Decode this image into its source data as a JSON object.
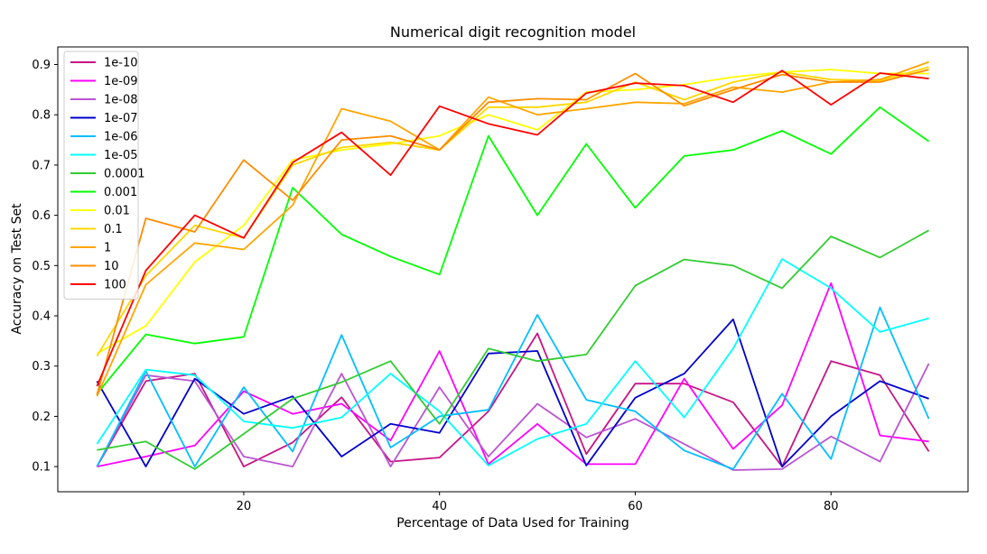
{
  "chart_data": {
    "type": "line",
    "title": "Numerical digit recognition model",
    "xlabel": "Percentage of Data Used for Training",
    "ylabel": "Accuracy on Test Set",
    "xlim": [
      1,
      94
    ],
    "ylim": [
      0.05,
      0.935
    ],
    "xticks": [
      20,
      40,
      60,
      80
    ],
    "yticks": [
      0.1,
      0.2,
      0.3,
      0.4,
      0.5,
      0.6,
      0.7,
      0.8,
      0.9
    ],
    "xtick_labels": [
      "20",
      "40",
      "60",
      "80"
    ],
    "ytick_labels": [
      "0.1",
      "0.2",
      "0.3",
      "0.4",
      "0.5",
      "0.6",
      "0.7",
      "0.8",
      "0.9"
    ],
    "grid": false,
    "legend_position": "top-left",
    "x": [
      5,
      10,
      15,
      20,
      25,
      30,
      35,
      40,
      45,
      50,
      55,
      60,
      65,
      70,
      75,
      80,
      85,
      90
    ],
    "series": [
      {
        "name": "1e-10",
        "color": "#c71585",
        "values": [
          0.1,
          0.27,
          0.285,
          0.1,
          0.148,
          0.238,
          0.11,
          0.118,
          0.21,
          0.365,
          0.125,
          0.265,
          0.265,
          0.228,
          0.1,
          0.31,
          0.282,
          0.13
        ]
      },
      {
        "name": "1e-09",
        "color": "#ff00ff",
        "values": [
          0.1,
          0.12,
          0.142,
          0.25,
          0.205,
          0.225,
          0.152,
          0.33,
          0.105,
          0.185,
          0.105,
          0.105,
          0.275,
          0.135,
          0.222,
          0.465,
          0.162,
          0.15
        ]
      },
      {
        "name": "1e-08",
        "color": "#ba55d3",
        "values": [
          0.1,
          0.282,
          0.27,
          0.12,
          0.1,
          0.285,
          0.1,
          0.258,
          0.12,
          0.225,
          0.158,
          0.195,
          0.145,
          0.093,
          0.095,
          0.16,
          0.11,
          0.305
        ]
      },
      {
        "name": "1e-07",
        "color": "#0000cd",
        "values": [
          0.27,
          0.1,
          0.275,
          0.205,
          0.24,
          0.12,
          0.185,
          0.167,
          0.325,
          0.33,
          0.102,
          0.237,
          0.285,
          0.393,
          0.1,
          0.2,
          0.27,
          0.235
        ]
      },
      {
        "name": "1e-06",
        "color": "#00bfff",
        "values": [
          0.1,
          0.29,
          0.1,
          0.258,
          0.13,
          0.362,
          0.138,
          0.2,
          0.213,
          0.402,
          0.233,
          0.21,
          0.132,
          0.095,
          0.245,
          0.115,
          0.417,
          0.195
        ]
      },
      {
        "name": "1e-05",
        "color": "#00ffff",
        "values": [
          0.145,
          0.293,
          0.282,
          0.19,
          0.177,
          0.198,
          0.285,
          0.21,
          0.102,
          0.155,
          0.185,
          0.31,
          0.198,
          0.335,
          0.513,
          0.455,
          0.368,
          0.395
        ]
      },
      {
        "name": "0.0001",
        "color": "#32cd32",
        "values": [
          0.133,
          0.15,
          0.095,
          0.165,
          0.235,
          0.268,
          0.31,
          0.185,
          0.335,
          0.31,
          0.323,
          0.46,
          0.512,
          0.5,
          0.455,
          0.558,
          0.516,
          0.57
        ]
      },
      {
        "name": "0.001",
        "color": "#00ff00",
        "values": [
          0.245,
          0.363,
          0.345,
          0.358,
          0.655,
          0.562,
          0.518,
          0.482,
          0.758,
          0.6,
          0.742,
          0.615,
          0.718,
          0.73,
          0.768,
          0.722,
          0.815,
          0.747
        ]
      },
      {
        "name": "0.01",
        "color": "#ffff00",
        "values": [
          0.325,
          0.38,
          0.507,
          0.58,
          0.71,
          0.73,
          0.742,
          0.758,
          0.8,
          0.77,
          0.845,
          0.85,
          0.86,
          0.875,
          0.885,
          0.89,
          0.882,
          0.882
        ]
      },
      {
        "name": "0.1",
        "color": "#ffd700",
        "values": [
          0.32,
          0.48,
          0.58,
          0.555,
          0.7,
          0.735,
          0.745,
          0.73,
          0.815,
          0.815,
          0.825,
          0.865,
          0.83,
          0.865,
          0.885,
          0.87,
          0.868,
          0.895
        ]
      },
      {
        "name": "1",
        "color": "#ffa500",
        "values": [
          0.24,
          0.462,
          0.545,
          0.532,
          0.62,
          0.812,
          0.787,
          0.73,
          0.835,
          0.8,
          0.812,
          0.825,
          0.822,
          0.855,
          0.845,
          0.865,
          0.87,
          0.905
        ]
      },
      {
        "name": "10",
        "color": "#ff8c00",
        "values": [
          0.243,
          0.594,
          0.567,
          0.71,
          0.63,
          0.75,
          0.758,
          0.73,
          0.825,
          0.832,
          0.83,
          0.882,
          0.818,
          0.85,
          0.88,
          0.865,
          0.865,
          0.89
        ]
      },
      {
        "name": "100",
        "color": "#ff0000",
        "values": [
          0.26,
          0.49,
          0.6,
          0.555,
          0.705,
          0.765,
          0.68,
          0.817,
          0.782,
          0.76,
          0.843,
          0.863,
          0.858,
          0.825,
          0.888,
          0.82,
          0.883,
          0.872
        ]
      }
    ]
  }
}
